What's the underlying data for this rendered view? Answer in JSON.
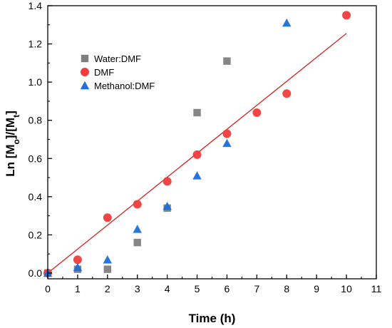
{
  "chart_data": {
    "type": "scatter",
    "title": "",
    "xlabel": "Time (h)",
    "ylabel_parts": [
      "Ln [M",
      "o",
      "]/[M",
      "t",
      "]"
    ],
    "xlim": [
      0,
      11
    ],
    "ylim": [
      -0.03,
      1.4
    ],
    "xticks": [
      0,
      1,
      2,
      3,
      4,
      5,
      6,
      7,
      8,
      9,
      10,
      11
    ],
    "yticks": [
      0.0,
      0.2,
      0.4,
      0.6,
      0.8,
      1.0,
      1.2,
      1.4
    ],
    "ytick_labels": [
      "0.0",
      "0.2",
      "0.4",
      "0.6",
      "0.8",
      "1.0",
      "1.2",
      "1.4"
    ],
    "grid": false,
    "legend_position": "upper-left",
    "series": [
      {
        "name": "Water:DMF",
        "marker": "square",
        "color": "#7f7f7f",
        "x": [
          0,
          1,
          2,
          3,
          4,
          5,
          6
        ],
        "y": [
          0.0,
          0.02,
          0.02,
          0.16,
          0.34,
          0.84,
          1.11
        ]
      },
      {
        "name": "DMF",
        "marker": "circle",
        "color": "#f03c3c",
        "x": [
          0,
          1,
          2,
          3,
          4,
          5,
          6,
          7,
          8,
          10
        ],
        "y": [
          0.0,
          0.07,
          0.29,
          0.36,
          0.48,
          0.62,
          0.73,
          0.84,
          0.94,
          1.35
        ]
      },
      {
        "name": "Methanol:DMF",
        "marker": "triangle",
        "color": "#1e6fd9",
        "x": [
          0,
          1,
          2,
          3,
          4,
          5,
          6,
          8
        ],
        "y": [
          0.0,
          0.03,
          0.07,
          0.23,
          0.35,
          0.51,
          0.68,
          1.31
        ]
      }
    ],
    "fit_line": {
      "color": "#d22020",
      "x": [
        0,
        10
      ],
      "y": [
        0.0,
        1.255
      ]
    }
  }
}
